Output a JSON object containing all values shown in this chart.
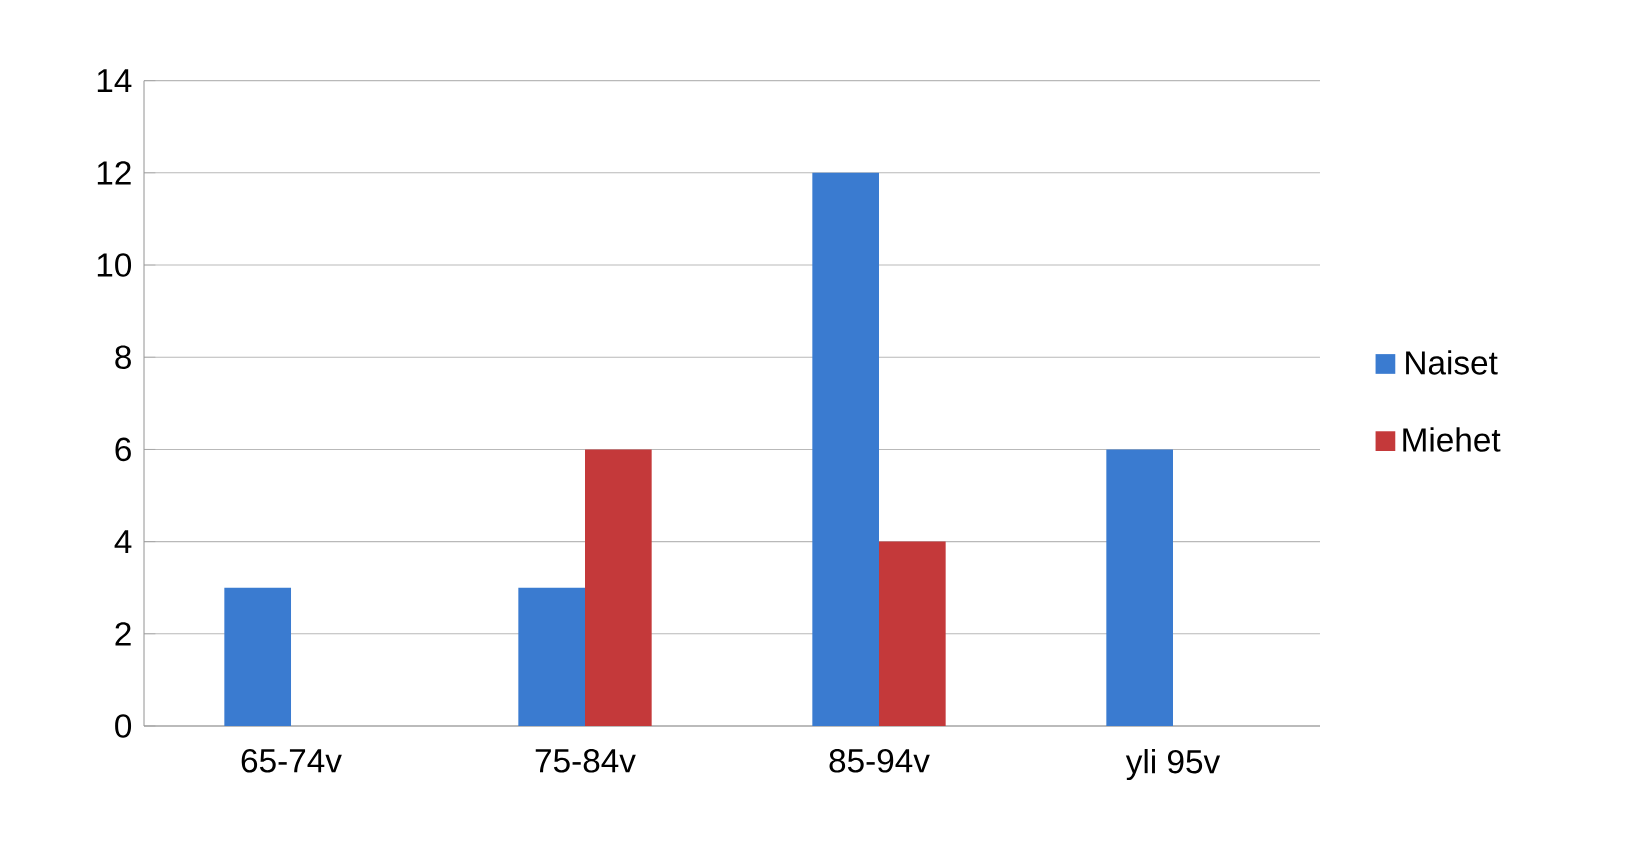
{
  "chart_data": {
    "type": "bar",
    "categories": [
      "65-74v",
      "75-84v",
      "85-94v",
      "yli 95v"
    ],
    "series": [
      {
        "name": "Naiset",
        "color": "#3a7bd0",
        "values": [
          3,
          3,
          12,
          6
        ]
      },
      {
        "name": "Miehet",
        "color": "#c4393a",
        "values": [
          0,
          6,
          4,
          0
        ]
      }
    ],
    "ylim": [
      0,
      14
    ],
    "yticks": [
      0,
      2,
      4,
      6,
      8,
      10,
      12,
      14
    ],
    "grid": "y",
    "legend": "right"
  }
}
